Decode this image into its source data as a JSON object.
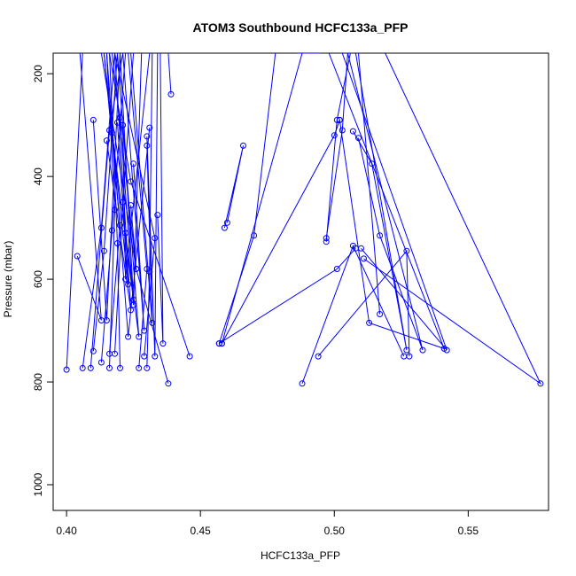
{
  "chart_data": {
    "type": "line",
    "title": "ATOM3 Southbound HCFC133a_PFP",
    "xlabel": "HCFC133a_PFP",
    "ylabel": "Pressure (mbar)",
    "xlim": [
      0.395,
      0.58
    ],
    "ylim": [
      1050,
      160
    ],
    "y_reversed": true,
    "x_ticks": [
      0.4,
      0.45,
      0.5,
      0.55
    ],
    "x_tick_labels": [
      "0.40",
      "0.45",
      "0.50",
      "0.55"
    ],
    "y_ticks": [
      200,
      400,
      600,
      800,
      1000
    ],
    "y_tick_labels": [
      "200",
      "400",
      "600",
      "800",
      "1000"
    ],
    "series_color": "#0000ff",
    "marker": "open-circle",
    "grid": false,
    "series": [
      {
        "segments": [
          [
            [
              0.404,
              555
            ],
            [
              0.413,
              680
            ],
            [
              0.405,
              160
            ]
          ],
          [
            [
              0.4,
              776
            ],
            [
              0.406,
              160
            ]
          ],
          [
            [
              0.406,
              773
            ],
            [
              0.413,
              500
            ],
            [
              0.418,
              160
            ]
          ],
          [
            [
              0.409,
              773
            ],
            [
              0.416,
              310
            ],
            [
              0.421,
              160
            ]
          ],
          [
            [
              0.41,
              740
            ],
            [
              0.414,
              545
            ],
            [
              0.419,
              160
            ]
          ],
          [
            [
              0.413,
              762
            ],
            [
              0.417,
              505
            ],
            [
              0.422,
              160
            ]
          ],
          [
            [
              0.416,
              773
            ],
            [
              0.418,
              465
            ],
            [
              0.415,
              160
            ]
          ],
          [
            [
              0.416,
              745
            ],
            [
              0.42,
              495
            ],
            [
              0.414,
              160
            ]
          ],
          [
            [
              0.418,
              745
            ],
            [
              0.421,
              450
            ],
            [
              0.425,
              160
            ]
          ],
          [
            [
              0.42,
              773
            ],
            [
              0.419,
              530
            ],
            [
              0.416,
              160
            ]
          ],
          [
            [
              0.41,
              290
            ],
            [
              0.415,
              680
            ],
            [
              0.42,
              160
            ]
          ],
          [
            [
              0.415,
              330
            ],
            [
              0.424,
              660
            ],
            [
              0.418,
              160
            ]
          ],
          [
            [
              0.417,
              315
            ],
            [
              0.425,
              640
            ],
            [
              0.42,
              160
            ]
          ],
          [
            [
              0.419,
              295
            ],
            [
              0.423,
              610
            ],
            [
              0.414,
              160
            ]
          ],
          [
            [
              0.42,
              285
            ],
            [
              0.425,
              650
            ],
            [
              0.428,
              160
            ]
          ],
          [
            [
              0.421,
              300
            ],
            [
              0.422,
              600
            ],
            [
              0.431,
              160
            ]
          ],
          [
            [
              0.422,
              510
            ],
            [
              0.427,
              712
            ],
            [
              0.419,
              160
            ]
          ],
          [
            [
              0.424,
              456
            ],
            [
              0.426,
              580
            ],
            [
              0.417,
              160
            ]
          ],
          [
            [
              0.425,
              375
            ],
            [
              0.429,
              700
            ],
            [
              0.421,
              160
            ]
          ],
          [
            [
              0.427,
              773
            ],
            [
              0.43,
              580
            ],
            [
              0.423,
              160
            ]
          ],
          [
            [
              0.429,
              750
            ],
            [
              0.433,
              520
            ],
            [
              0.418,
              160
            ]
          ],
          [
            [
              0.43,
              773
            ],
            [
              0.431,
              585
            ],
            [
              0.432,
              160
            ]
          ],
          [
            [
              0.43,
              340
            ],
            [
              0.432,
              685
            ],
            [
              0.424,
              160
            ]
          ],
          [
            [
              0.43,
              322
            ],
            [
              0.433,
              750
            ],
            [
              0.434,
              160
            ]
          ],
          [
            [
              0.431,
              305
            ],
            [
              0.423,
              712
            ],
            [
              0.415,
              160
            ]
          ],
          [
            [
              0.434,
              475
            ],
            [
              0.436,
              725
            ],
            [
              0.435,
              160
            ]
          ],
          [
            [
              0.439,
              240
            ],
            [
              0.438,
              160
            ]
          ],
          [
            [
              0.438,
              803
            ],
            [
              0.426,
              580
            ],
            [
              0.413,
              160
            ]
          ],
          [
            [
              0.446,
              750
            ],
            [
              0.424,
              410
            ],
            [
              0.416,
              160
            ]
          ],
          [
            [
              0.459,
              500
            ],
            [
              0.466,
              340
            ],
            [
              0.46,
              490
            ]
          ],
          [
            [
              0.457,
              725
            ],
            [
              0.47,
              515
            ],
            [
              0.478,
              160
            ]
          ],
          [
            [
              0.458,
              725
            ],
            [
              0.488,
              160
            ]
          ],
          [
            [
              0.458,
              725
            ],
            [
              0.5,
              320
            ],
            [
              0.502,
              290
            ]
          ],
          [
            [
              0.457,
              725
            ],
            [
              0.501,
              580
            ],
            [
              0.508,
              540
            ]
          ],
          [
            [
              0.497,
              520
            ],
            [
              0.503,
              310
            ],
            [
              0.505,
              160
            ]
          ],
          [
            [
              0.497,
              527
            ],
            [
              0.501,
              290
            ],
            [
              0.506,
              160
            ]
          ],
          [
            [
              0.488,
              803
            ],
            [
              0.507,
              535
            ],
            [
              0.526,
              750
            ]
          ],
          [
            [
              0.494,
              750
            ],
            [
              0.527,
              545
            ],
            [
              0.528,
              750
            ]
          ],
          [
            [
              0.502,
              290
            ],
            [
              0.513,
              685
            ],
            [
              0.541,
              735
            ],
            [
              0.498,
              160
            ]
          ],
          [
            [
              0.507,
              312
            ],
            [
              0.514,
              375
            ],
            [
              0.527,
              738
            ],
            [
              0.508,
              160
            ]
          ],
          [
            [
              0.509,
              325
            ],
            [
              0.517,
              515
            ],
            [
              0.533,
              738
            ],
            [
              0.505,
              160
            ]
          ],
          [
            [
              0.51,
              540
            ],
            [
              0.542,
              738
            ],
            [
              0.503,
              160
            ]
          ],
          [
            [
              0.511,
              560
            ],
            [
              0.577,
              803
            ],
            [
              0.519,
              160
            ]
          ],
          [
            [
              0.517,
              668
            ],
            [
              0.509,
              160
            ]
          ],
          [
            [
              0.495,
              160
            ],
            [
              0.486,
              160
            ]
          ]
        ]
      }
    ]
  }
}
